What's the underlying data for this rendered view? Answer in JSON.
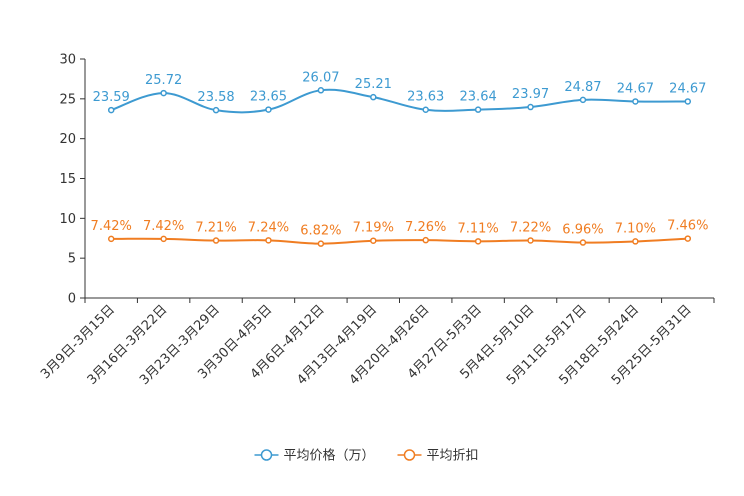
{
  "chart_data": {
    "type": "line",
    "title": "",
    "xlabel": "",
    "ylabel": "",
    "ylim": [
      0,
      30
    ],
    "yticks": [
      0,
      5,
      10,
      15,
      20,
      25,
      30
    ],
    "grid": false,
    "legend_position": "bottom-center",
    "categories": [
      "3月9日-3月15日",
      "3月16日-3月22日",
      "3月23日-3月29日",
      "3月30日-4月5日",
      "4月6日-4月12日",
      "4月13日-4月19日",
      "4月20日-4月26日",
      "4月27日-5月3日",
      "5月4日-5月10日",
      "5月11日-5月17日",
      "5月18日-5月24日",
      "5月25日-5月31日"
    ],
    "series": [
      {
        "name": "平均价格（万）",
        "color": "#3d9ad1",
        "values": [
          23.59,
          25.72,
          23.58,
          23.65,
          26.07,
          25.21,
          23.63,
          23.64,
          23.97,
          24.87,
          24.67,
          24.67
        ],
        "labels": [
          "23.59",
          "25.72",
          "23.58",
          "23.65",
          "26.07",
          "25.21",
          "23.63",
          "23.64",
          "23.97",
          "24.87",
          "24.67",
          "24.67"
        ]
      },
      {
        "name": "平均折扣",
        "color": "#f07d22",
        "values": [
          7.42,
          7.42,
          7.21,
          7.24,
          6.82,
          7.19,
          7.26,
          7.11,
          7.22,
          6.96,
          7.1,
          7.46
        ],
        "labels": [
          "7.42%",
          "7.42%",
          "7.21%",
          "7.24%",
          "6.82%",
          "7.19%",
          "7.26%",
          "7.11%",
          "7.22%",
          "6.96%",
          "7.10%",
          "7.46%"
        ]
      }
    ]
  }
}
